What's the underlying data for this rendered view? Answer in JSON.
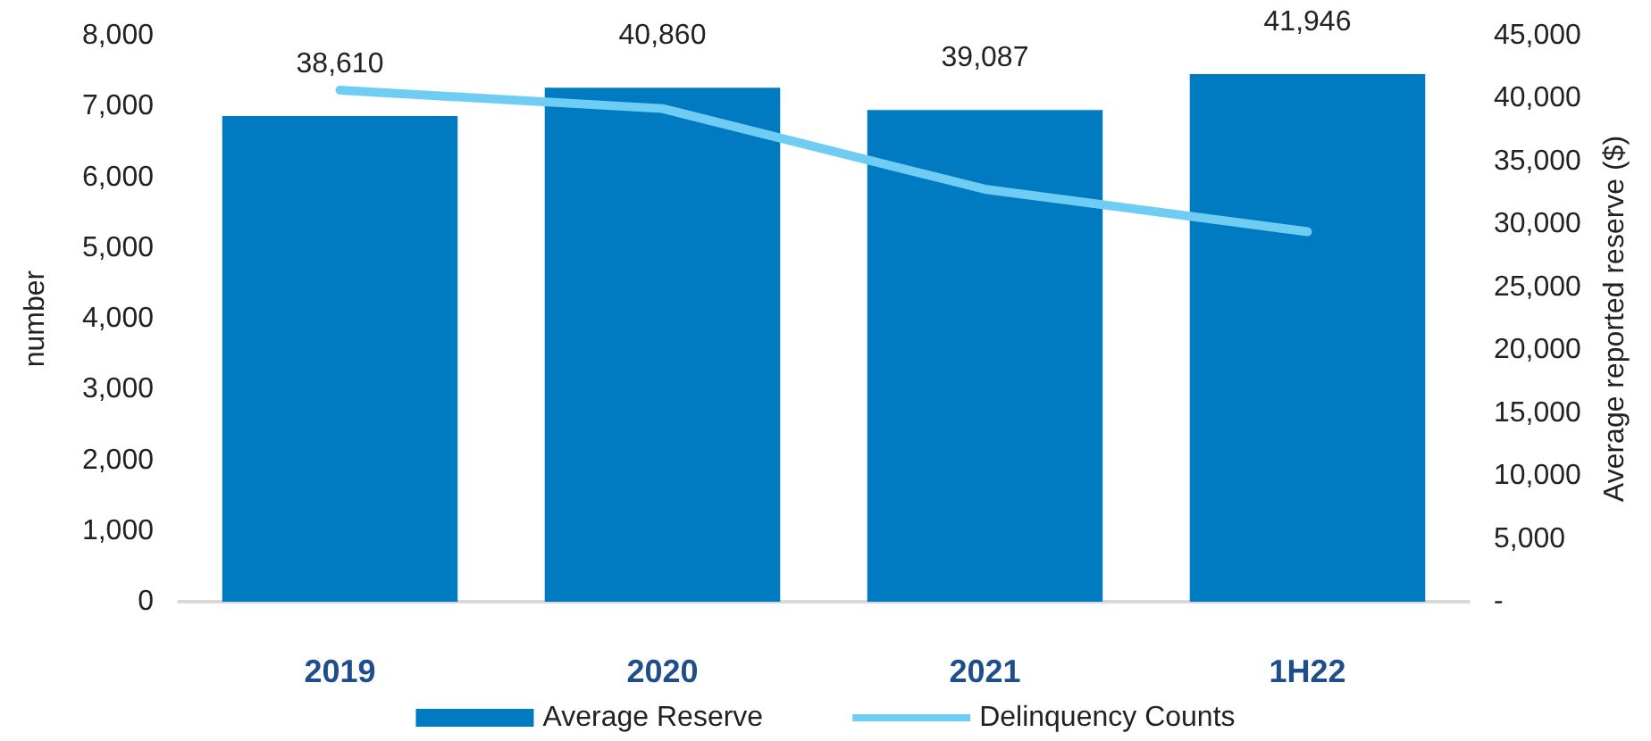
{
  "chart_data": {
    "type": "bar",
    "categories": [
      "2019",
      "2020",
      "2021",
      "1H22"
    ],
    "ylabel": "number",
    "y2label": "Average reported reserve ($)",
    "ylim": [
      0,
      8000
    ],
    "yticks": [
      0,
      {
        "value": 1000,
        "label": "1,000"
      },
      {
        "value": 2000,
        "label": "2,000"
      },
      {
        "value": 3000,
        "label": "3,000"
      },
      {
        "value": 4000,
        "label": "4,000"
      },
      {
        "value": 5000,
        "label": "5,000"
      },
      {
        "value": 6000,
        "label": "6,000"
      },
      {
        "value": 7000,
        "label": "7,000"
      },
      {
        "value": 8000,
        "label": "8,000"
      }
    ],
    "y2lim": [
      0,
      45000
    ],
    "y2ticks": [
      {
        "value": 0,
        "label": "-"
      },
      {
        "value": 5000,
        "label": "5,000"
      },
      {
        "value": 10000,
        "label": "10,000"
      },
      {
        "value": 15000,
        "label": "15,000"
      },
      {
        "value": 20000,
        "label": "20,000"
      },
      {
        "value": 25000,
        "label": "25,000"
      },
      {
        "value": 30000,
        "label": "30,000"
      },
      {
        "value": 35000,
        "label": "35,000"
      },
      {
        "value": 40000,
        "label": "40,000"
      },
      {
        "value": 45000,
        "label": "45,000"
      }
    ],
    "series": [
      {
        "name": "Average Reserve",
        "axis": "y2",
        "color": "#007ac1",
        "values": [
          38610,
          40860,
          39087,
          41946
        ],
        "value_labels": [
          "38,610",
          "40,860",
          "39,087",
          "41,946"
        ]
      },
      {
        "name": "Delinquency Counts",
        "type": "line",
        "axis": "y",
        "color": "#6fcdf4",
        "values": [
          7230,
          6970,
          5830,
          5230
        ]
      }
    ],
    "legend": "bottom",
    "grid": false,
    "marker": "none",
    "line_style": "solid"
  }
}
